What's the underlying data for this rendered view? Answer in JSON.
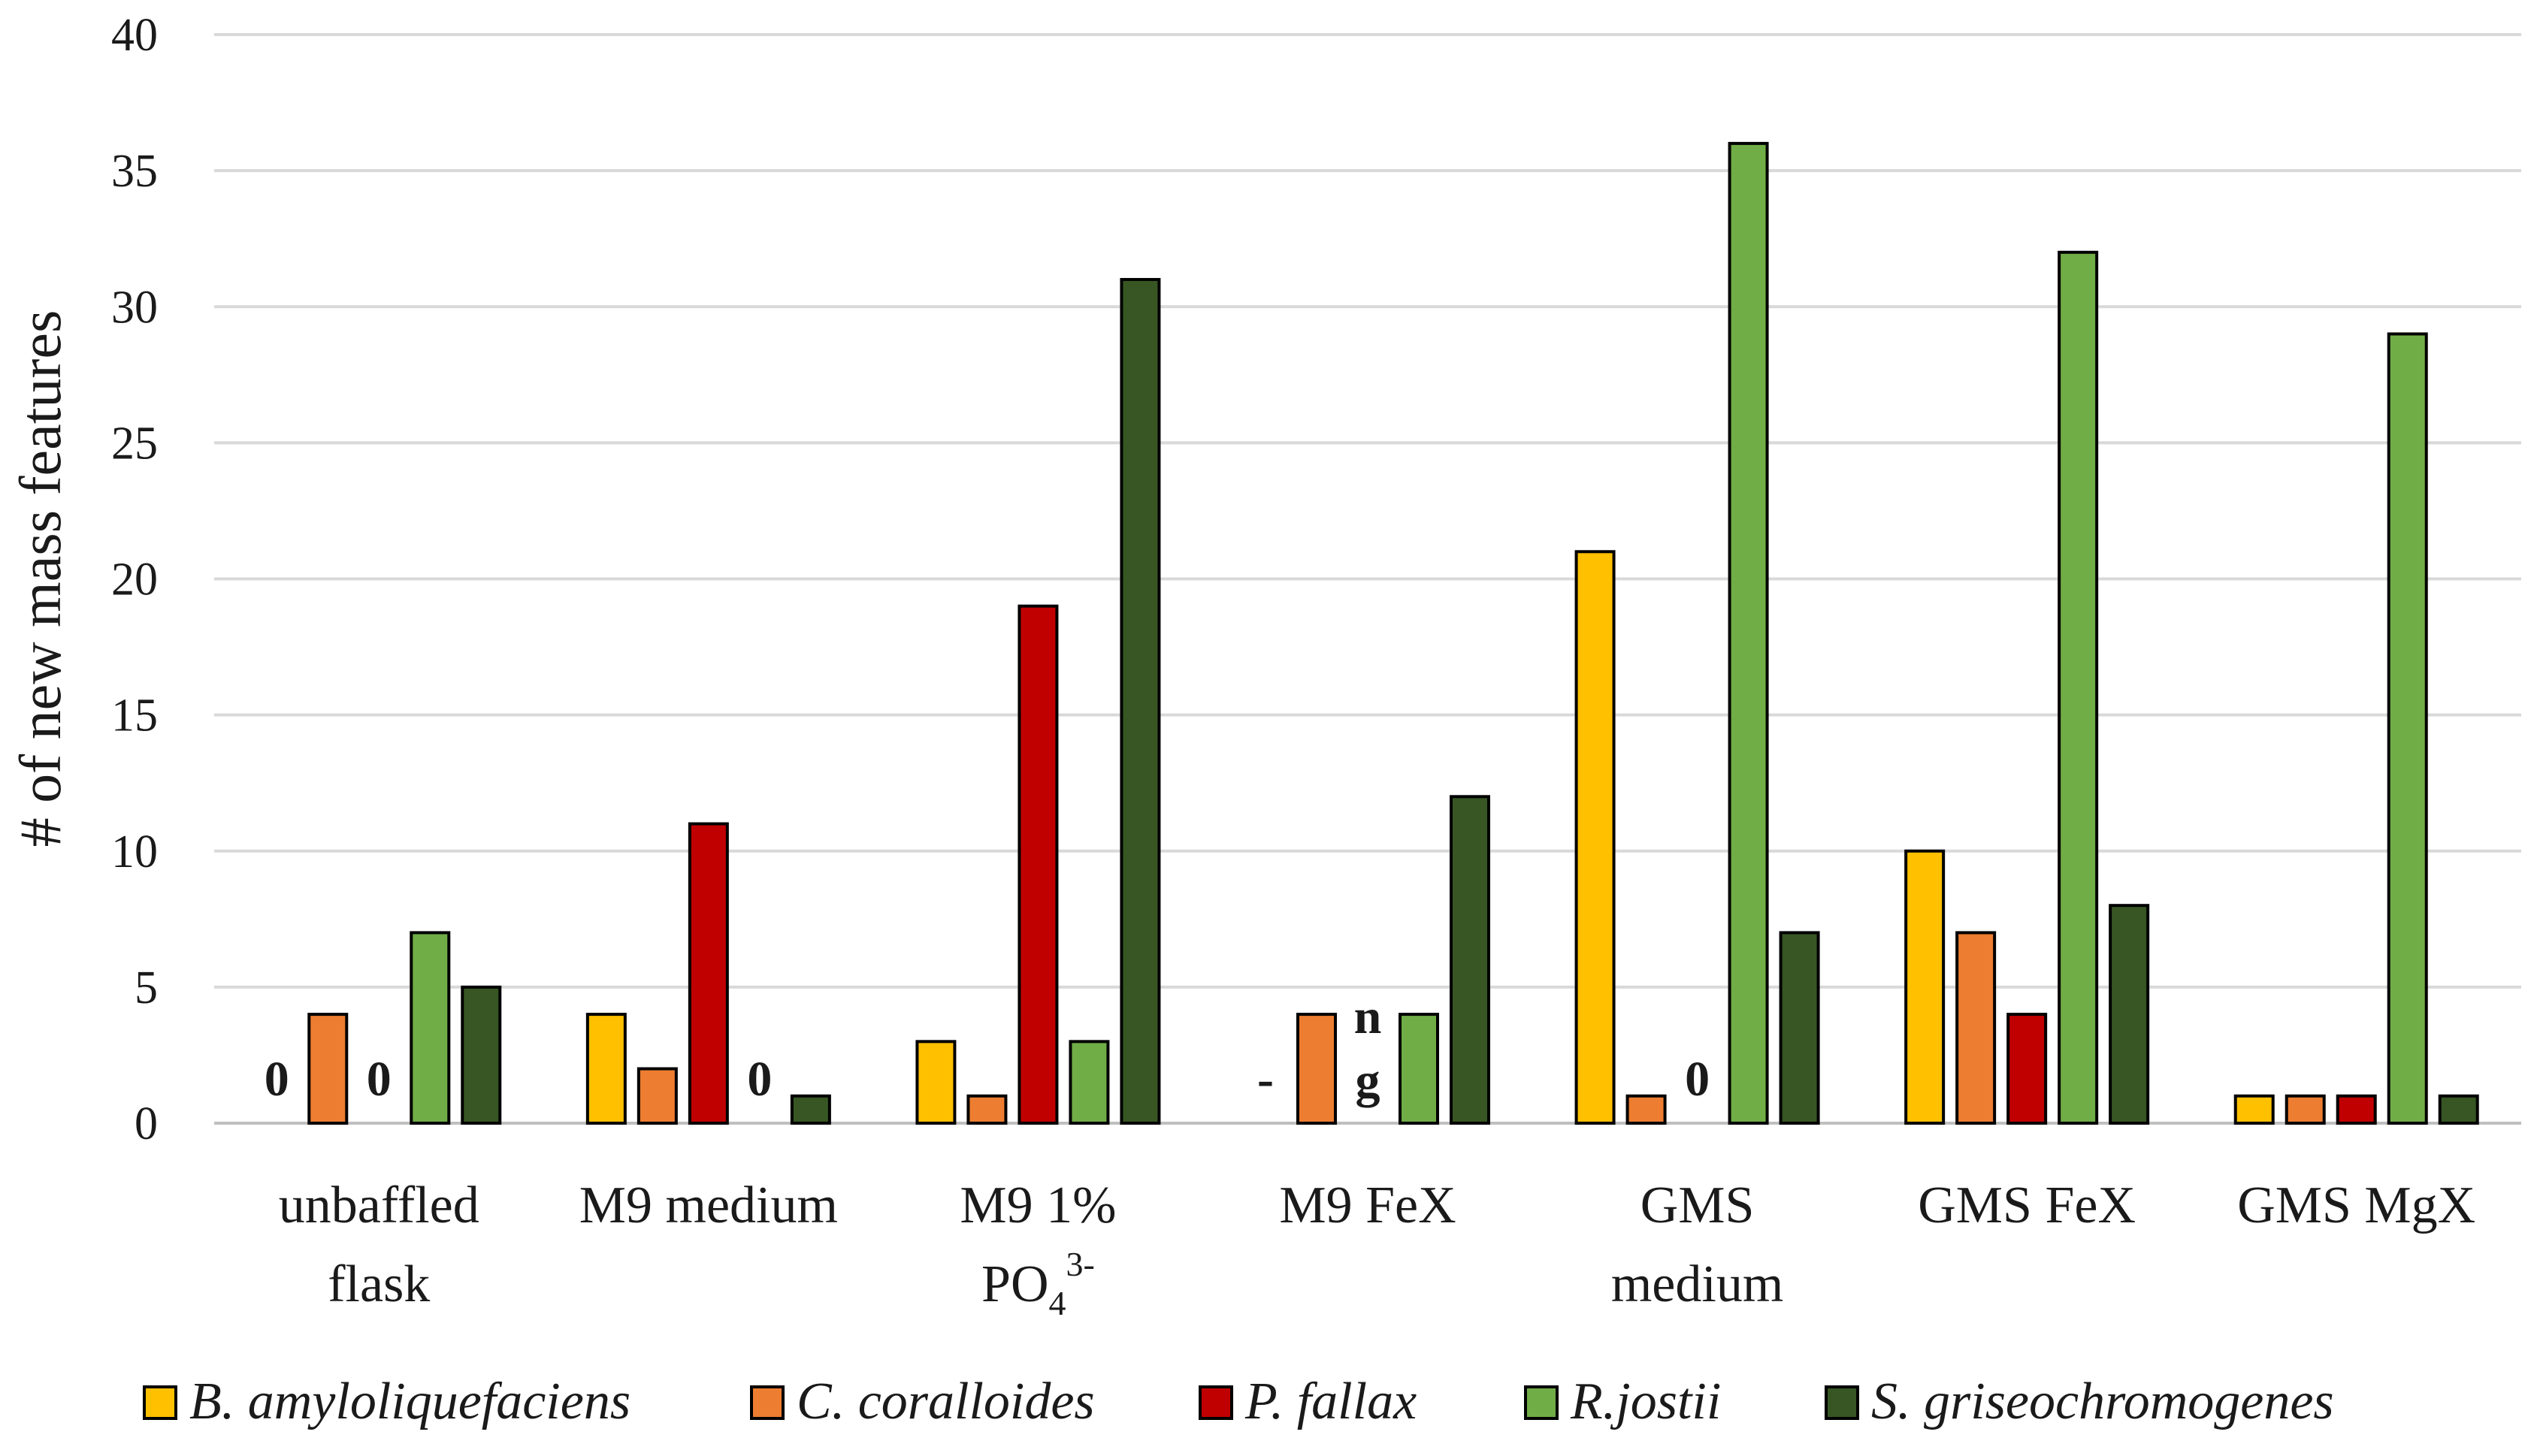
{
  "chart_data": {
    "type": "bar",
    "title": "",
    "xlabel": "",
    "ylabel": "# of new mass features",
    "ylim": [
      0,
      40
    ],
    "yticks": [
      0,
      5,
      10,
      15,
      20,
      25,
      30,
      35,
      40
    ],
    "grid": true,
    "legend_position": "bottom",
    "categories": [
      [
        "unbaffled",
        "flask"
      ],
      [
        "M9 medium"
      ],
      [
        "M9 1%",
        "PO43-"
      ],
      [
        "M9 FeX"
      ],
      [
        "GMS",
        "medium"
      ],
      [
        "GMS FeX"
      ],
      [
        "GMS MgX"
      ]
    ],
    "series": [
      {
        "name": "B. amyloliquefaciens",
        "color": "#FFC000",
        "values": [
          0,
          4,
          3,
          null,
          21,
          10,
          1
        ]
      },
      {
        "name": "C. coralloides",
        "color": "#ED7D31",
        "values": [
          4,
          2,
          1,
          4,
          1,
          7,
          1
        ]
      },
      {
        "name": "P. fallax",
        "color": "#C00000",
        "values": [
          0,
          11,
          19,
          null,
          0,
          4,
          1
        ]
      },
      {
        "name": "R.jostii",
        "color": "#70AD47",
        "values": [
          7,
          0,
          3,
          4,
          36,
          32,
          29
        ]
      },
      {
        "name": "S. griseochromogenes",
        "color": "#375623",
        "values": [
          5,
          1,
          31,
          12,
          7,
          8,
          1
        ]
      }
    ],
    "annotations": [
      {
        "category": 0,
        "series": 0,
        "text": "0"
      },
      {
        "category": 0,
        "series": 2,
        "text": "0"
      },
      {
        "category": 1,
        "series": 3,
        "text": "0"
      },
      {
        "category": 3,
        "series": 0,
        "text": "-"
      },
      {
        "category": 3,
        "series": 2,
        "text": "n g"
      },
      {
        "category": 4,
        "series": 2,
        "text": "0"
      }
    ]
  }
}
